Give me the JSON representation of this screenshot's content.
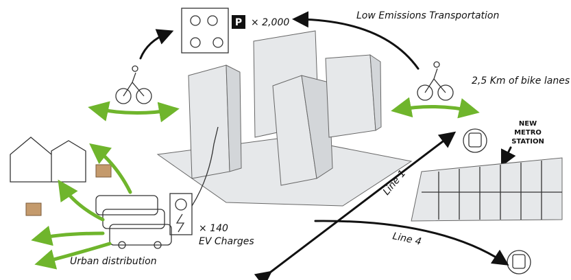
{
  "parking": {
    "icon": "P",
    "count": "× 2,000"
  },
  "transport": "Low Emissions Transportation",
  "bike_lanes": "2,5 Km of bike lanes",
  "metro": [
    "NEW",
    "METRO",
    "STATION"
  ],
  "lines": [
    "Line 1",
    "Line 4"
  ],
  "ev": {
    "count": "× 140",
    "label": "EV Charges"
  },
  "distribution": "Urban distribution"
}
